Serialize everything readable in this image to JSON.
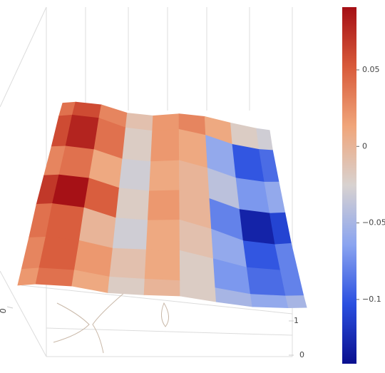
{
  "chart_data": {
    "type": "surface",
    "z": [
      [
        0.04,
        0.06,
        0.03,
        -0.01,
        0.02,
        0.03,
        0.01,
        -0.02,
        -0.03
      ],
      [
        0.06,
        0.08,
        0.04,
        -0.02,
        0.02,
        0.01,
        -0.06,
        -0.1,
        -0.09
      ],
      [
        0.03,
        0.04,
        0.01,
        -0.03,
        0.01,
        0.0,
        -0.04,
        -0.07,
        -0.06
      ],
      [
        0.07,
        0.09,
        0.05,
        -0.02,
        0.02,
        0.0,
        -0.08,
        -0.13,
        -0.11
      ],
      [
        0.04,
        0.05,
        0.0,
        -0.03,
        0.01,
        -0.01,
        -0.06,
        -0.1,
        -0.08
      ],
      [
        0.03,
        0.05,
        0.02,
        -0.01,
        0.01,
        -0.02,
        -0.07,
        -0.09,
        -0.08
      ],
      [
        0.02,
        0.04,
        0.01,
        -0.02,
        0.0,
        -0.02,
        -0.05,
        -0.06,
        -0.05
      ]
    ],
    "zlim": [
      -0.142,
      0.091
    ],
    "colorscale": [
      "#0a0f8f",
      "#2a4fe0",
      "#8aa4f0",
      "#d8d2d0",
      "#f0a57a",
      "#d85a3a",
      "#a50f15"
    ],
    "colorbar_ticks": [
      0.05,
      0,
      {
        "value": -0.05,
        "label": "−0.05"
      },
      {
        "value": -0.1,
        "label": "−0.1"
      }
    ],
    "xticks": [
      0
    ],
    "yticks": [
      0,
      1
    ]
  }
}
